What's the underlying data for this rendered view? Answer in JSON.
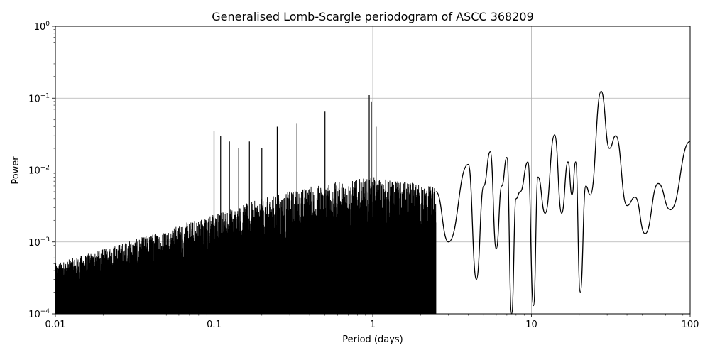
{
  "chart_data": {
    "type": "line",
    "title": "Generalised Lomb-Scargle periodogram of ASCC 368209",
    "xlabel": "Period (days)",
    "ylabel": "Power",
    "xscale": "log",
    "yscale": "log",
    "xlim": [
      0.01,
      100
    ],
    "ylim": [
      0.0001,
      1
    ],
    "grid": true,
    "line_color": "#000000",
    "x_ticks": [
      {
        "value": 0.01,
        "label": "0.01"
      },
      {
        "value": 0.1,
        "label": "0.1"
      },
      {
        "value": 1,
        "label": "1"
      },
      {
        "value": 10,
        "label": "10"
      },
      {
        "value": 100,
        "label": "100"
      }
    ],
    "y_ticks": [
      {
        "value": 0.0001,
        "base": "10",
        "exp": "−4"
      },
      {
        "value": 0.001,
        "base": "10",
        "exp": "−3"
      },
      {
        "value": 0.01,
        "base": "10",
        "exp": "−2"
      },
      {
        "value": 0.1,
        "base": "10",
        "exp": "−1"
      },
      {
        "value": 1,
        "base": "10",
        "exp": "0"
      }
    ],
    "series": [
      {
        "name": "",
        "dense_noise_envelope": [
          {
            "period": 0.01,
            "p_low": 0.0001,
            "p_high": 0.0005
          },
          {
            "period": 0.02,
            "p_low": 0.0001,
            "p_high": 0.0008
          },
          {
            "period": 0.05,
            "p_low": 0.0001,
            "p_high": 0.0015
          },
          {
            "period": 0.1,
            "p_low": 0.0001,
            "p_high": 0.0025
          },
          {
            "period": 0.2,
            "p_low": 0.0001,
            "p_high": 0.004
          },
          {
            "period": 0.4,
            "p_low": 0.0001,
            "p_high": 0.006
          },
          {
            "period": 1.0,
            "p_low": 0.0001,
            "p_high": 0.008
          },
          {
            "period": 2.5,
            "p_low": 0.0001,
            "p_high": 0.006
          }
        ],
        "peaks": [
          {
            "period": 0.1,
            "power": 0.035
          },
          {
            "period": 0.11,
            "power": 0.03
          },
          {
            "period": 0.125,
            "power": 0.025
          },
          {
            "period": 0.143,
            "power": 0.02
          },
          {
            "period": 0.167,
            "power": 0.025
          },
          {
            "period": 0.2,
            "power": 0.02
          },
          {
            "period": 0.25,
            "power": 0.04
          },
          {
            "period": 0.333,
            "power": 0.045
          },
          {
            "period": 0.5,
            "power": 0.065
          },
          {
            "period": 0.95,
            "power": 0.11
          },
          {
            "period": 0.98,
            "power": 0.09
          },
          {
            "period": 1.05,
            "power": 0.04
          }
        ],
        "smooth_segment": [
          {
            "period": 2.5,
            "power": 0.005
          },
          {
            "period": 3.0,
            "power": 0.001
          },
          {
            "period": 4.0,
            "power": 0.012
          },
          {
            "period": 4.5,
            "power": 0.0003
          },
          {
            "period": 5.0,
            "power": 0.006
          },
          {
            "period": 5.5,
            "power": 0.018
          },
          {
            "period": 6.0,
            "power": 0.0008
          },
          {
            "period": 6.5,
            "power": 0.006
          },
          {
            "period": 7.0,
            "power": 0.015
          },
          {
            "period": 7.5,
            "power": 0.0001
          },
          {
            "period": 8.0,
            "power": 0.004
          },
          {
            "period": 8.5,
            "power": 0.005
          },
          {
            "period": 9.5,
            "power": 0.013
          },
          {
            "period": 10.3,
            "power": 0.00013
          },
          {
            "period": 11.0,
            "power": 0.008
          },
          {
            "period": 12.2,
            "power": 0.0025
          },
          {
            "period": 14.0,
            "power": 0.031
          },
          {
            "period": 15.5,
            "power": 0.0025
          },
          {
            "period": 17.0,
            "power": 0.013
          },
          {
            "period": 18.0,
            "power": 0.0045
          },
          {
            "period": 19.0,
            "power": 0.013
          },
          {
            "period": 20.3,
            "power": 0.0002
          },
          {
            "period": 22.0,
            "power": 0.006
          },
          {
            "period": 23.5,
            "power": 0.0045
          },
          {
            "period": 27.5,
            "power": 0.125
          },
          {
            "period": 31.0,
            "power": 0.02
          },
          {
            "period": 34.0,
            "power": 0.03
          },
          {
            "period": 40.0,
            "power": 0.0032
          },
          {
            "period": 45.0,
            "power": 0.0042
          },
          {
            "period": 52.0,
            "power": 0.0013
          },
          {
            "period": 63.0,
            "power": 0.0065
          },
          {
            "period": 75.0,
            "power": 0.0028
          },
          {
            "period": 100.0,
            "power": 0.025
          }
        ]
      }
    ]
  }
}
